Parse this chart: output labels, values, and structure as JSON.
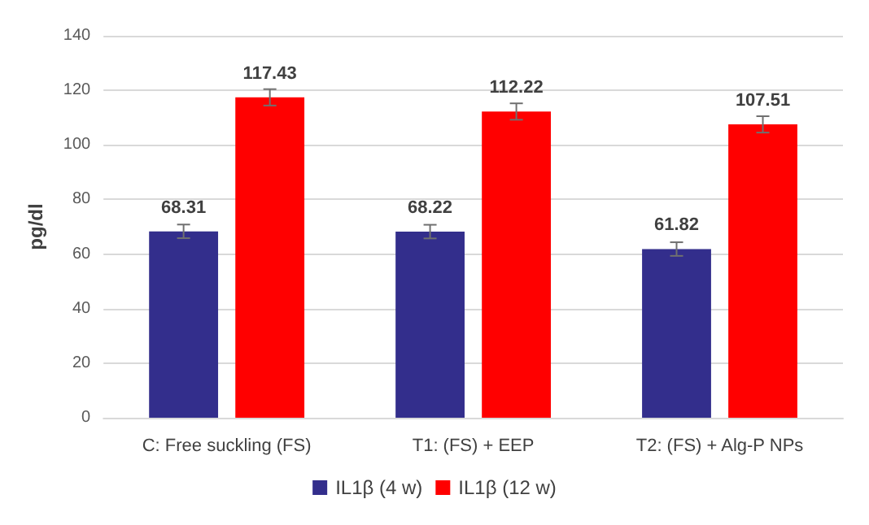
{
  "chart_data": {
    "type": "bar",
    "ylabel": "pg/dl",
    "categories": [
      "C: Free suckling (FS)",
      "T1: (FS) + EEP",
      "T2: (FS) + Alg-P NPs"
    ],
    "series": [
      {
        "name": "IL1β (4 w)",
        "color": "#332e8c",
        "values": [
          68.31,
          68.22,
          61.82
        ],
        "errors": [
          2.5,
          2.5,
          2.5
        ]
      },
      {
        "name": "IL1β (12 w)",
        "color": "#ff0000",
        "values": [
          117.43,
          112.22,
          107.51
        ],
        "errors": [
          3,
          3,
          3
        ]
      }
    ],
    "ylim": [
      0,
      140
    ],
    "yticks": [
      0,
      20,
      40,
      60,
      80,
      100,
      120,
      140
    ],
    "grid": "y",
    "legend": "bottom",
    "data_labels": true
  }
}
